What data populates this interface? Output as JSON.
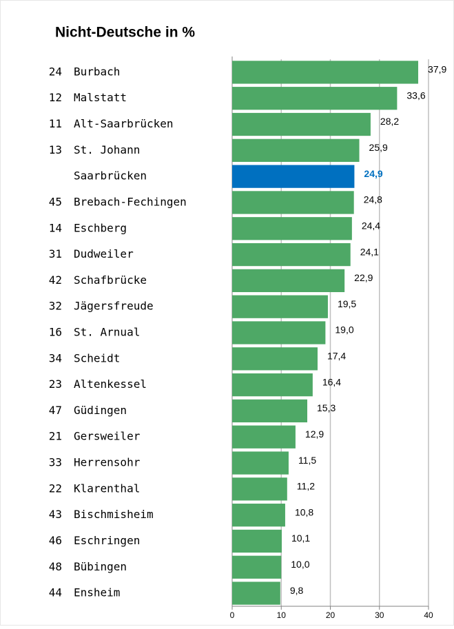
{
  "chart_data": {
    "type": "hbar",
    "title": "Nicht-Deutsche in %",
    "codes": [
      "24",
      "12",
      "11",
      "13",
      null,
      "45",
      "14",
      "31",
      "42",
      "32",
      "16",
      "34",
      "23",
      "47",
      "21",
      "33",
      "22",
      "43",
      "46",
      "48",
      "44"
    ],
    "categories": [
      "Burbach",
      "Malstatt",
      "Alt-Saarbrücken",
      "St. Johann",
      "Saarbrücken",
      "Brebach-Fechingen",
      "Eschberg",
      "Dudweiler",
      "Schafbrücke",
      "Jägersfreude",
      "St. Arnual",
      "Scheidt",
      "Altenkessel",
      "Güdingen",
      "Gersweiler",
      "Herrensohr",
      "Klarenthal",
      "Bischmisheim",
      "Eschringen",
      "Bübingen",
      "Ensheim"
    ],
    "values": [
      37.9,
      33.6,
      28.2,
      25.9,
      24.9,
      24.8,
      24.4,
      24.1,
      22.9,
      19.5,
      19.0,
      17.4,
      16.4,
      15.3,
      12.9,
      11.5,
      11.2,
      10.8,
      10.1,
      10.0,
      9.8
    ],
    "value_labels": [
      "37,9",
      "33,6",
      "28,2",
      "25,9",
      "24,9",
      "24,8",
      "24,4",
      "24,1",
      "22,9",
      "19,5",
      "19,0",
      "17,4",
      "16,4",
      "15,3",
      "12,9",
      "11,5",
      "11,2",
      "10,8",
      "10,1",
      "10,0",
      "9,8"
    ],
    "color": "#4ea866",
    "highlight": {
      "index": 4,
      "color": "#0070c0"
    },
    "xlim": [
      0,
      40
    ],
    "xticks": [
      0,
      10,
      20,
      30,
      40
    ],
    "grid": true
  }
}
